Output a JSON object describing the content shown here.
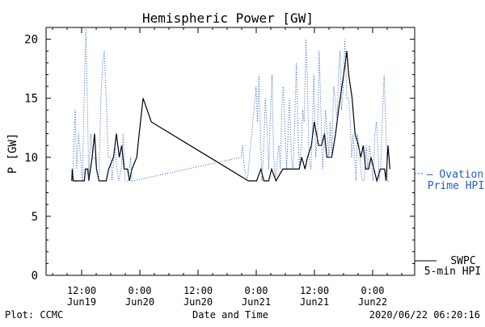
{
  "chart_data": {
    "type": "line",
    "title": "Hemispheric Power [GW]",
    "ylabel": "P [GW]",
    "xlabel": "Date and Time",
    "ylim": [
      0,
      21
    ],
    "y_ticks": [
      0,
      5,
      10,
      15,
      20
    ],
    "x_range_hours": [
      0,
      3
    ],
    "x_ticks": [
      {
        "top": "12:00",
        "bottom": "Jun19"
      },
      {
        "top": "0:00",
        "bottom": "Jun20"
      },
      {
        "top": "12:00",
        "bottom": "Jun20"
      },
      {
        "top": "0:00",
        "bottom": "Jun21"
      },
      {
        "top": "12:00",
        "bottom": "Jun21"
      },
      {
        "top": "0:00",
        "bottom": "Jun22"
      }
    ],
    "series": [
      {
        "name": "SWPC 5-min HPI",
        "color": "#000000",
        "style": "solid",
        "points": [
          [
            5.3,
            8
          ],
          [
            5.4,
            9
          ],
          [
            5.6,
            8
          ],
          [
            7.9,
            8
          ],
          [
            8.1,
            9
          ],
          [
            8.6,
            9
          ],
          [
            8.8,
            8
          ],
          [
            9.5,
            10
          ],
          [
            10.0,
            12
          ],
          [
            10.4,
            9
          ],
          [
            10.9,
            8
          ],
          [
            12.4,
            8
          ],
          [
            12.9,
            9
          ],
          [
            13.9,
            10
          ],
          [
            14.5,
            12
          ],
          [
            15.1,
            10
          ],
          [
            15.6,
            11
          ],
          [
            16.1,
            9
          ],
          [
            16.8,
            9
          ],
          [
            17.2,
            8
          ],
          [
            17.7,
            9
          ],
          [
            18.7,
            10
          ],
          [
            19.2,
            12
          ],
          [
            20.0,
            15
          ],
          [
            21.7,
            13
          ],
          [
            41.7,
            8
          ],
          [
            43.4,
            8
          ],
          [
            44.3,
            9
          ],
          [
            44.9,
            8
          ],
          [
            45.9,
            8
          ],
          [
            46.5,
            9
          ],
          [
            47.4,
            8
          ],
          [
            48.8,
            9
          ],
          [
            52.2,
            9
          ],
          [
            52.7,
            10
          ],
          [
            53.4,
            9
          ],
          [
            53.9,
            10
          ],
          [
            54.7,
            11
          ],
          [
            55.3,
            13
          ],
          [
            56.2,
            11
          ],
          [
            56.8,
            11
          ],
          [
            57.4,
            12
          ],
          [
            57.9,
            10
          ],
          [
            58.9,
            10
          ],
          [
            59.7,
            12
          ],
          [
            60.3,
            14
          ],
          [
            61.0,
            16
          ],
          [
            61.7,
            18
          ],
          [
            62.0,
            19
          ],
          [
            62.4,
            17
          ],
          [
            63.1,
            15
          ],
          [
            63.7,
            12
          ],
          [
            64.4,
            11
          ],
          [
            64.9,
            10
          ],
          [
            65.4,
            11
          ],
          [
            65.9,
            9
          ],
          [
            66.5,
            9
          ],
          [
            67.0,
            10
          ],
          [
            67.6,
            9
          ],
          [
            68.2,
            8
          ],
          [
            68.9,
            9
          ],
          [
            69.8,
            9
          ],
          [
            70.1,
            8
          ],
          [
            70.5,
            11
          ],
          [
            70.9,
            9
          ]
        ]
      },
      {
        "name": "Ovation Prime HPI",
        "color": "#1f5fbf",
        "style": "dotted",
        "points": [
          [
            5.5,
            8
          ],
          [
            5.8,
            12
          ],
          [
            6.0,
            14
          ],
          [
            6.3,
            9
          ],
          [
            6.7,
            12
          ],
          [
            7.1,
            10
          ],
          [
            7.5,
            8
          ],
          [
            7.9,
            16
          ],
          [
            8.2,
            21
          ],
          [
            8.5,
            15
          ],
          [
            8.8,
            8
          ],
          [
            9.2,
            12
          ],
          [
            9.6,
            10
          ],
          [
            10.0,
            10
          ],
          [
            10.4,
            9
          ],
          [
            10.9,
            8
          ],
          [
            11.3,
            15
          ],
          [
            11.7,
            18
          ],
          [
            12.0,
            19
          ],
          [
            12.4,
            15
          ],
          [
            12.8,
            10
          ],
          [
            13.3,
            10
          ],
          [
            13.6,
            8
          ],
          [
            14.2,
            11
          ],
          [
            14.6,
            9
          ],
          [
            15.0,
            8
          ],
          [
            15.5,
            9
          ],
          [
            15.9,
            12
          ],
          [
            16.3,
            8
          ],
          [
            17.0,
            8
          ],
          [
            17.4,
            10
          ],
          [
            17.7,
            8
          ],
          [
            19.0,
            8.1
          ],
          [
            40.2,
            10
          ],
          [
            40.5,
            11
          ],
          [
            40.9,
            9
          ],
          [
            41.5,
            8
          ],
          [
            43.3,
            16
          ],
          [
            43.6,
            13
          ],
          [
            43.9,
            17
          ],
          [
            44.2,
            12
          ],
          [
            44.5,
            8
          ],
          [
            44.9,
            11
          ],
          [
            45.2,
            15
          ],
          [
            45.6,
            12
          ],
          [
            45.9,
            9
          ],
          [
            46.2,
            13
          ],
          [
            46.6,
            17
          ],
          [
            46.9,
            10
          ],
          [
            47.3,
            8
          ],
          [
            47.7,
            10
          ],
          [
            48.0,
            11
          ],
          [
            48.3,
            9
          ],
          [
            48.6,
            14
          ],
          [
            48.9,
            16
          ],
          [
            49.3,
            12
          ],
          [
            49.6,
            9
          ],
          [
            49.9,
            12
          ],
          [
            50.2,
            15
          ],
          [
            50.6,
            10
          ],
          [
            50.9,
            9
          ],
          [
            51.2,
            12
          ],
          [
            51.6,
            18
          ],
          [
            51.9,
            13
          ],
          [
            52.2,
            9
          ],
          [
            52.6,
            11
          ],
          [
            52.9,
            14
          ],
          [
            53.2,
            13
          ],
          [
            53.6,
            20
          ],
          [
            53.9,
            16
          ],
          [
            54.2,
            10
          ],
          [
            54.6,
            9
          ],
          [
            54.9,
            12
          ],
          [
            55.2,
            17
          ],
          [
            55.6,
            10
          ],
          [
            56.0,
            12
          ],
          [
            56.3,
            19
          ],
          [
            56.6,
            15
          ],
          [
            57.0,
            9
          ],
          [
            57.3,
            11
          ],
          [
            57.6,
            14
          ],
          [
            58.0,
            12
          ],
          [
            58.3,
            10
          ],
          [
            58.6,
            13
          ],
          [
            58.9,
            10
          ],
          [
            59.3,
            16
          ],
          [
            59.6,
            15
          ],
          [
            60.0,
            13
          ],
          [
            60.3,
            17
          ],
          [
            60.6,
            19
          ],
          [
            60.9,
            14
          ],
          [
            61.3,
            16
          ],
          [
            61.6,
            20
          ],
          [
            62.0,
            15
          ],
          [
            62.3,
            15
          ],
          [
            62.6,
            14
          ],
          [
            63.0,
            10
          ],
          [
            63.3,
            12
          ],
          [
            63.6,
            10
          ],
          [
            63.9,
            8
          ],
          [
            64.2,
            12
          ],
          [
            64.5,
            11
          ],
          [
            64.9,
            9
          ],
          [
            65.2,
            8
          ],
          [
            65.6,
            8
          ],
          [
            66.0,
            11
          ],
          [
            66.3,
            9
          ],
          [
            66.7,
            11
          ],
          [
            67.0,
            10
          ],
          [
            67.4,
            8
          ],
          [
            67.8,
            12
          ],
          [
            68.1,
            13
          ],
          [
            68.4,
            11
          ],
          [
            68.7,
            8
          ],
          [
            69.0,
            9
          ],
          [
            69.4,
            14
          ],
          [
            69.7,
            17
          ],
          [
            70.1,
            12
          ],
          [
            70.4,
            8
          ],
          [
            70.8,
            8
          ]
        ]
      }
    ],
    "legend": [
      {
        "label": "— Ovation",
        "sub": "Prime HPI",
        "color": "#1f5fbf",
        "style": "dashed-marker"
      },
      {
        "label": "SWPC",
        "sub": "5-min HPI",
        "color": "#000000",
        "style": "solid"
      }
    ]
  },
  "footer": {
    "plot_credit": "Plot: CCMC",
    "timestamp": "2020/06/22 06:20:16"
  }
}
